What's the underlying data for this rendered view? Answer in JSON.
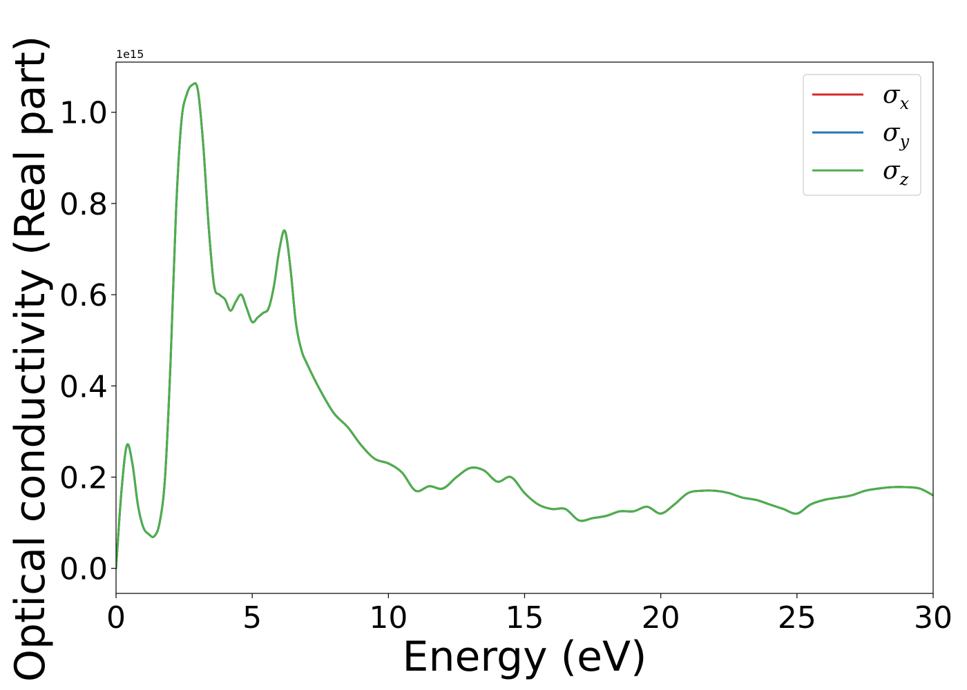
{
  "chart_data": {
    "type": "line",
    "title": "",
    "xlabel": "Energy (eV)",
    "ylabel": "Optical conductivity (Real part)",
    "y_offset_label": "1e15",
    "y_scale_factor": 1000000000000000.0,
    "xlim": [
      0,
      30
    ],
    "ylim": [
      -0.055,
      1.11
    ],
    "x_ticks": [
      0,
      5,
      10,
      15,
      20,
      25,
      30
    ],
    "x_tick_labels": [
      "0",
      "5",
      "10",
      "15",
      "20",
      "25",
      "30"
    ],
    "y_ticks": [
      0.0,
      0.2,
      0.4,
      0.6,
      0.8,
      1.0
    ],
    "y_tick_labels": [
      "0.0",
      "0.2",
      "0.4",
      "0.6",
      "0.8",
      "1.0"
    ],
    "grid": false,
    "legend_position": "top-right",
    "x": [
      0,
      0.2,
      0.4,
      0.6,
      0.8,
      1.0,
      1.2,
      1.4,
      1.6,
      1.8,
      2.0,
      2.2,
      2.4,
      2.6,
      2.8,
      3.0,
      3.2,
      3.4,
      3.6,
      3.8,
      4.0,
      4.2,
      4.4,
      4.6,
      4.8,
      5.0,
      5.2,
      5.4,
      5.6,
      5.8,
      6.0,
      6.2,
      6.4,
      6.6,
      6.8,
      7.0,
      7.5,
      8.0,
      8.5,
      9.0,
      9.5,
      10.0,
      10.5,
      11.0,
      11.5,
      12.0,
      12.5,
      13.0,
      13.5,
      14.0,
      14.5,
      15.0,
      15.5,
      16.0,
      16.5,
      17.0,
      17.5,
      18.0,
      18.5,
      19.0,
      19.5,
      20.0,
      20.5,
      21.0,
      21.5,
      22.0,
      22.5,
      23.0,
      23.5,
      24.0,
      24.5,
      25.0,
      25.5,
      26.0,
      26.5,
      27.0,
      27.5,
      28.0,
      28.5,
      29.0,
      29.5,
      30.0
    ],
    "series": [
      {
        "name": "σx",
        "color": "#d62728",
        "values": [
          0.0,
          0.17,
          0.27,
          0.23,
          0.14,
          0.09,
          0.075,
          0.07,
          0.1,
          0.2,
          0.45,
          0.78,
          0.98,
          1.04,
          1.06,
          1.05,
          0.93,
          0.75,
          0.62,
          0.6,
          0.59,
          0.565,
          0.585,
          0.6,
          0.57,
          0.54,
          0.55,
          0.56,
          0.57,
          0.62,
          0.7,
          0.74,
          0.66,
          0.54,
          0.48,
          0.45,
          0.39,
          0.34,
          0.31,
          0.27,
          0.24,
          0.23,
          0.21,
          0.17,
          0.18,
          0.175,
          0.2,
          0.22,
          0.215,
          0.19,
          0.2,
          0.165,
          0.14,
          0.13,
          0.13,
          0.105,
          0.11,
          0.115,
          0.125,
          0.125,
          0.135,
          0.12,
          0.14,
          0.165,
          0.17,
          0.17,
          0.165,
          0.155,
          0.15,
          0.14,
          0.13,
          0.12,
          0.14,
          0.15,
          0.155,
          0.16,
          0.17,
          0.175,
          0.178,
          0.178,
          0.175,
          0.16
        ]
      },
      {
        "name": "σy",
        "color": "#1f77b4",
        "values": [
          0.0,
          0.17,
          0.27,
          0.23,
          0.14,
          0.09,
          0.075,
          0.07,
          0.1,
          0.2,
          0.45,
          0.78,
          0.98,
          1.04,
          1.06,
          1.05,
          0.93,
          0.75,
          0.62,
          0.6,
          0.59,
          0.565,
          0.585,
          0.6,
          0.57,
          0.54,
          0.55,
          0.56,
          0.57,
          0.62,
          0.7,
          0.74,
          0.66,
          0.54,
          0.48,
          0.45,
          0.39,
          0.34,
          0.31,
          0.27,
          0.24,
          0.23,
          0.21,
          0.17,
          0.18,
          0.175,
          0.2,
          0.22,
          0.215,
          0.19,
          0.2,
          0.165,
          0.14,
          0.13,
          0.13,
          0.105,
          0.11,
          0.115,
          0.125,
          0.125,
          0.135,
          0.12,
          0.14,
          0.165,
          0.17,
          0.17,
          0.165,
          0.155,
          0.15,
          0.14,
          0.13,
          0.12,
          0.14,
          0.15,
          0.155,
          0.16,
          0.17,
          0.175,
          0.178,
          0.178,
          0.175,
          0.16
        ]
      },
      {
        "name": "σz",
        "color": "#4daf4a",
        "values": [
          0.0,
          0.17,
          0.27,
          0.23,
          0.14,
          0.09,
          0.075,
          0.07,
          0.1,
          0.2,
          0.45,
          0.78,
          0.98,
          1.04,
          1.06,
          1.05,
          0.93,
          0.75,
          0.62,
          0.6,
          0.59,
          0.565,
          0.585,
          0.6,
          0.57,
          0.54,
          0.55,
          0.56,
          0.57,
          0.62,
          0.7,
          0.74,
          0.66,
          0.54,
          0.48,
          0.45,
          0.39,
          0.34,
          0.31,
          0.27,
          0.24,
          0.23,
          0.21,
          0.17,
          0.18,
          0.175,
          0.2,
          0.22,
          0.215,
          0.19,
          0.2,
          0.165,
          0.14,
          0.13,
          0.13,
          0.105,
          0.11,
          0.115,
          0.125,
          0.125,
          0.135,
          0.12,
          0.14,
          0.165,
          0.17,
          0.17,
          0.165,
          0.155,
          0.15,
          0.14,
          0.13,
          0.12,
          0.14,
          0.15,
          0.155,
          0.16,
          0.17,
          0.175,
          0.178,
          0.178,
          0.175,
          0.16
        ]
      }
    ],
    "legend": [
      {
        "symbol": "σ",
        "subscript": "x",
        "color": "#d62728"
      },
      {
        "symbol": "σ",
        "subscript": "y",
        "color": "#1f77b4"
      },
      {
        "symbol": "σ",
        "subscript": "z",
        "color": "#4daf4a"
      }
    ]
  }
}
